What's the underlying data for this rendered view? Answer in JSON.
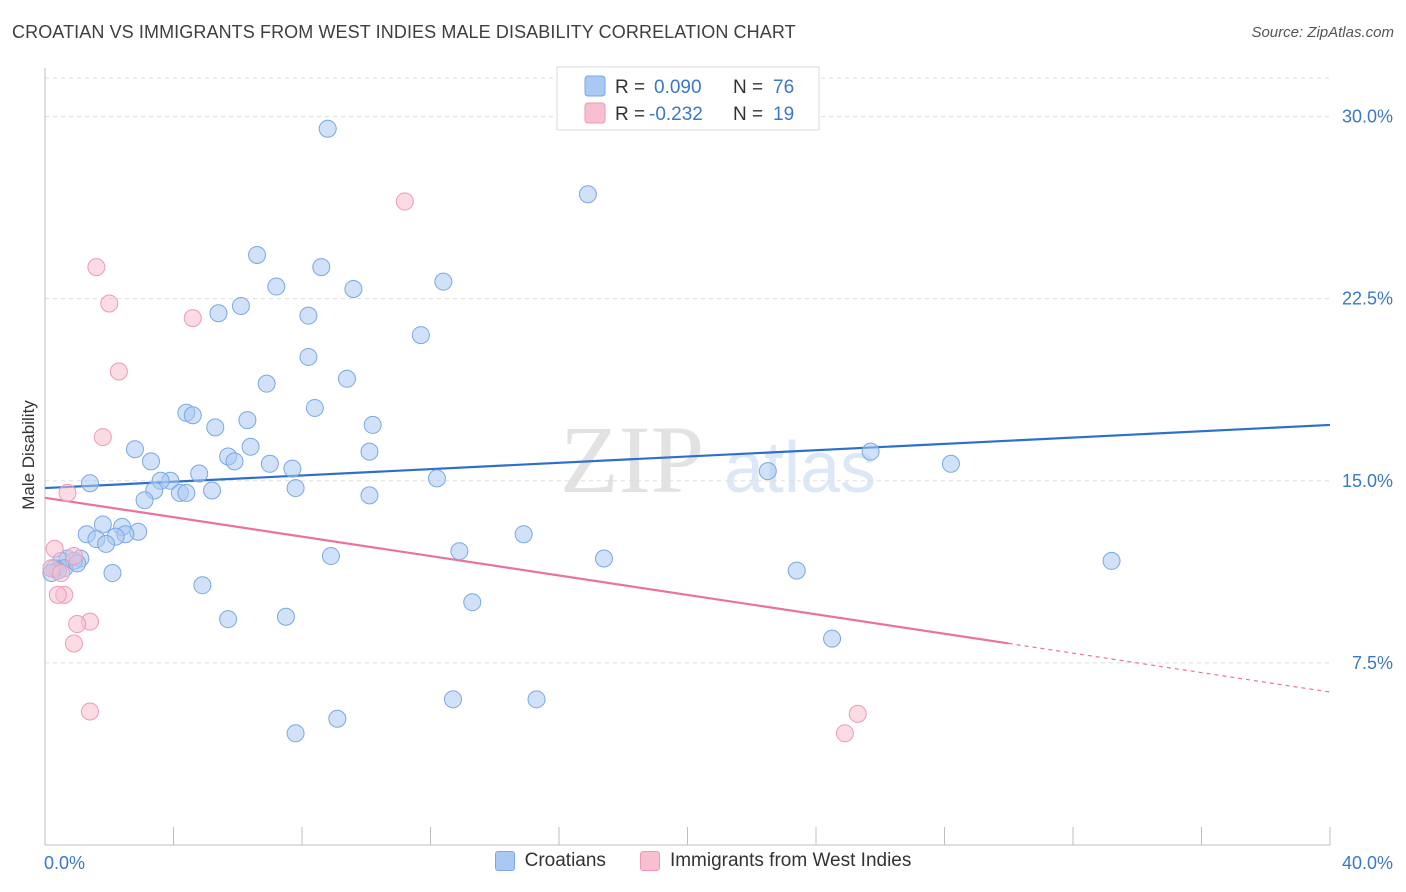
{
  "title": "CROATIAN VS IMMIGRANTS FROM WEST INDIES MALE DISABILITY CORRELATION CHART",
  "source": "Source: ZipAtlas.com",
  "watermark": {
    "zip": "ZIP",
    "atlas": "atlas"
  },
  "colors": {
    "blue_fill": "#a9c8f2",
    "blue_stroke": "#7aa8e6",
    "blue_line": "#2e6fcc",
    "pink_fill": "#f7bfd0",
    "pink_stroke": "#ef9ab4",
    "pink_line": "#e8739c",
    "axis_text": "#3a78c9",
    "grid": "#dddddd"
  },
  "chart_data": {
    "type": "scatter",
    "xlabel": "",
    "ylabel": "Male Disability",
    "xlim": [
      0,
      40
    ],
    "ylim": [
      0,
      32
    ],
    "x_tick_labels": [
      "0.0%",
      "40.0%"
    ],
    "y_ticks": [
      7.5,
      15.0,
      22.5,
      30.0
    ],
    "y_tick_labels": [
      "7.5%",
      "15.0%",
      "22.5%",
      "30.0%"
    ],
    "grid": "horizontal dashed",
    "legend_stats": [
      {
        "r_label": "R =",
        "r_value": "0.090",
        "n_label": "N =",
        "n_value": "76"
      },
      {
        "r_label": "R =",
        "r_value": "-0.232",
        "n_label": "N =",
        "n_value": "19"
      }
    ],
    "series": [
      {
        "name": "Croatians",
        "color": "blue",
        "trend": {
          "x0": 0,
          "y0": 14.7,
          "x1": 40,
          "y1": 17.3
        },
        "points": [
          [
            8.8,
            29.5
          ],
          [
            16.9,
            26.8
          ],
          [
            6.6,
            24.3
          ],
          [
            8.6,
            23.8
          ],
          [
            12.4,
            23.2
          ],
          [
            7.2,
            23.0
          ],
          [
            9.6,
            22.9
          ],
          [
            6.1,
            22.2
          ],
          [
            5.4,
            21.9
          ],
          [
            8.2,
            21.8
          ],
          [
            11.7,
            21.0
          ],
          [
            8.2,
            20.1
          ],
          [
            9.4,
            19.2
          ],
          [
            6.9,
            19.0
          ],
          [
            8.4,
            18.0
          ],
          [
            4.4,
            17.8
          ],
          [
            4.6,
            17.7
          ],
          [
            6.3,
            17.5
          ],
          [
            5.3,
            17.2
          ],
          [
            10.2,
            17.3
          ],
          [
            2.8,
            16.3
          ],
          [
            6.4,
            16.4
          ],
          [
            10.1,
            16.2
          ],
          [
            25.7,
            16.2
          ],
          [
            3.3,
            15.8
          ],
          [
            5.7,
            16.0
          ],
          [
            5.9,
            15.8
          ],
          [
            7.0,
            15.7
          ],
          [
            7.7,
            15.5
          ],
          [
            28.2,
            15.7
          ],
          [
            22.5,
            15.4
          ],
          [
            4.8,
            15.3
          ],
          [
            3.9,
            15.0
          ],
          [
            3.6,
            15.0
          ],
          [
            1.4,
            14.9
          ],
          [
            12.2,
            15.1
          ],
          [
            7.8,
            14.7
          ],
          [
            5.2,
            14.6
          ],
          [
            3.4,
            14.6
          ],
          [
            4.2,
            14.5
          ],
          [
            4.4,
            14.5
          ],
          [
            10.1,
            14.4
          ],
          [
            3.1,
            14.2
          ],
          [
            1.8,
            13.2
          ],
          [
            2.4,
            13.1
          ],
          [
            2.9,
            12.9
          ],
          [
            2.5,
            12.8
          ],
          [
            2.2,
            12.7
          ],
          [
            1.3,
            12.8
          ],
          [
            1.6,
            12.6
          ],
          [
            14.9,
            12.8
          ],
          [
            1.9,
            12.4
          ],
          [
            12.9,
            12.1
          ],
          [
            0.7,
            11.8
          ],
          [
            1.1,
            11.8
          ],
          [
            0.5,
            11.7
          ],
          [
            0.9,
            11.7
          ],
          [
            8.9,
            11.9
          ],
          [
            17.4,
            11.8
          ],
          [
            33.2,
            11.7
          ],
          [
            0.6,
            11.4
          ],
          [
            0.3,
            11.4
          ],
          [
            0.4,
            11.3
          ],
          [
            2.1,
            11.2
          ],
          [
            23.4,
            11.3
          ],
          [
            4.9,
            10.7
          ],
          [
            13.3,
            10.0
          ],
          [
            5.7,
            9.3
          ],
          [
            7.5,
            9.4
          ],
          [
            24.5,
            8.5
          ],
          [
            12.7,
            6.0
          ],
          [
            15.3,
            6.0
          ],
          [
            9.1,
            5.2
          ],
          [
            7.8,
            4.6
          ],
          [
            0.2,
            11.2
          ],
          [
            1.0,
            11.6
          ]
        ]
      },
      {
        "name": "Immigrants from West Indies",
        "color": "pink",
        "trend": {
          "x0": 0,
          "y0": 14.3,
          "x1": 30,
          "y1": 8.3,
          "dash_to_x": 40,
          "dash_to_y": 6.3
        },
        "points": [
          [
            11.2,
            26.5
          ],
          [
            1.6,
            23.8
          ],
          [
            2.0,
            22.3
          ],
          [
            4.6,
            21.7
          ],
          [
            2.3,
            19.5
          ],
          [
            1.8,
            16.8
          ],
          [
            0.7,
            14.5
          ],
          [
            0.3,
            12.2
          ],
          [
            0.9,
            11.9
          ],
          [
            0.2,
            11.4
          ],
          [
            0.5,
            11.2
          ],
          [
            0.6,
            10.3
          ],
          [
            0.4,
            10.3
          ],
          [
            1.4,
            9.2
          ],
          [
            1.0,
            9.1
          ],
          [
            0.9,
            8.3
          ],
          [
            1.4,
            5.5
          ],
          [
            25.3,
            5.4
          ],
          [
            24.9,
            4.6
          ]
        ]
      }
    ]
  }
}
